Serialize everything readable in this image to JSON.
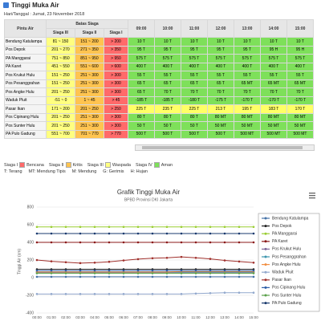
{
  "header": {
    "title": "Tinggi Muka Air",
    "date": "Hari/Tanggal : Jumat, 23 November 2018"
  },
  "table": {
    "pintu": "Pintu Air",
    "batas": "Batas Siaga",
    "siaga": [
      "Siaga III",
      "Siaga II",
      "Siaga I"
    ],
    "siaga_colors": [
      "#ffff80",
      "#ffc450",
      "#ff6a6a"
    ],
    "times": [
      "09:00",
      "10:00",
      "11:00",
      "12:00",
      "13:00",
      "14:00",
      "15:00"
    ],
    "rows": [
      {
        "name": "Bendung Katulampa",
        "siaga": [
          "81 ~ 150",
          "151 ~ 200",
          "> 200"
        ],
        "values": [
          "10 T",
          "10 T",
          "10 T",
          "10 T",
          "10 T",
          "10 T",
          "10 T"
        ],
        "color": "#7ee05a"
      },
      {
        "name": "Pos Depok",
        "siaga": [
          "201 ~ 270",
          "271 ~ 350",
          "> 350"
        ],
        "values": [
          "95 T",
          "95 T",
          "95 T",
          "95 T",
          "95 T",
          "95 H",
          "95 H"
        ],
        "color": "#7ee05a"
      },
      {
        "name": "PA Manggarai",
        "siaga": [
          "751 ~ 850",
          "851 ~ 950",
          "> 950"
        ],
        "values": [
          "575 T",
          "575 T",
          "575 T",
          "575 T",
          "575 T",
          "575 T",
          "575 T"
        ],
        "color": "#7ee05a"
      },
      {
        "name": "PA Karet",
        "siaga": [
          "451 ~ 550",
          "551 ~ 600",
          "> 600"
        ],
        "values": [
          "400 T",
          "400 T",
          "400 T",
          "400 T",
          "400 T",
          "400 T",
          "400 T"
        ],
        "color": "#7ee05a"
      },
      {
        "name": "Pos Krukut Hulu",
        "siaga": [
          "151 ~ 250",
          "251 ~ 300",
          "> 300"
        ],
        "values": [
          "55 T",
          "55 T",
          "55 T",
          "55 T",
          "55 T",
          "55 T",
          "55 T"
        ],
        "color": "#7ee05a"
      },
      {
        "name": "Pos Pesanggrahan",
        "siaga": [
          "151 ~ 250",
          "251 ~ 300",
          "> 300"
        ],
        "values": [
          "65 T",
          "65 T",
          "65 T",
          "65 T",
          "65 MT",
          "65 MT",
          "65 MT"
        ],
        "color": "#7ee05a"
      },
      {
        "name": "Pos Angke Hulu",
        "siaga": [
          "201 ~ 250",
          "251 ~ 300",
          "> 300"
        ],
        "values": [
          "65 T",
          "70 T",
          "70 T",
          "70 T",
          "70 T",
          "70 T",
          "70 T"
        ],
        "color": "#7ee05a"
      },
      {
        "name": "Waduk Pluit",
        "siaga": [
          "-51 ~ 0",
          "1 ~ 45",
          "> 45"
        ],
        "values": [
          "-185 T",
          "-185 T",
          "-180 T",
          "-175 T",
          "-170 T",
          "-170 T",
          "-170 T"
        ],
        "color": "#7ee05a"
      },
      {
        "name": "Pasar Ikan",
        "siaga": [
          "171 ~ 200",
          "201 ~ 250",
          "> 250"
        ],
        "values": [
          "225 T",
          "235 T",
          "225 T",
          "213 T",
          "195 T",
          "183 T",
          "170 T"
        ],
        "color": "#ffff66"
      },
      {
        "name": "Pos Cipinang Hulu",
        "siaga": [
          "201 ~ 250",
          "251 ~ 300",
          "> 300"
        ],
        "values": [
          "80 T",
          "80 T",
          "80 T",
          "80 MT",
          "80 MT",
          "80 MT",
          "80 MT"
        ],
        "color": "#7ee05a"
      },
      {
        "name": "Pos Sunter Hulu",
        "siaga": [
          "201 ~ 250",
          "251 ~ 300",
          "> 300"
        ],
        "values": [
          "50 T",
          "50 T",
          "50 T",
          "50 MT",
          "50 MT",
          "50 MT",
          "50 MT"
        ],
        "color": "#7ee05a"
      },
      {
        "name": "PA Pulo Gadung",
        "siaga": [
          "551 ~ 700",
          "701 ~ 770",
          "> 770"
        ],
        "values": [
          "500 T",
          "500 T",
          "500 T",
          "500 T",
          "500 MT",
          "500 MT",
          "500 MT"
        ],
        "color": "#7ee05a"
      }
    ]
  },
  "legend": {
    "items": [
      {
        "level": "Siaga I",
        "label": "Bencana",
        "color": "#ff6a6a"
      },
      {
        "level": "Siaga II",
        "label": "Kritis",
        "color": "#ffc450"
      },
      {
        "level": "Siaga III",
        "label": "Waspada",
        "color": "#ffff80"
      },
      {
        "level": "Siaga IV",
        "label": "Aman",
        "color": "#7ee05a"
      }
    ],
    "weather": [
      "T: Terang",
      "MT: Mendung Tipis",
      "M: Mendung",
      "G: Gerimis",
      "H: Hujan"
    ]
  },
  "chart_data": {
    "type": "line",
    "title": "Grafik Tinggi Muka Air",
    "subtitle": "BPBD Provinsi DKI Jakarta",
    "y_label": "Tinggi Air (cm)",
    "categories": [
      "00:00",
      "01:00",
      "02:00",
      "03:00",
      "04:00",
      "05:00",
      "06:00",
      "07:00",
      "08:00",
      "09:00",
      "10:00",
      "11:00",
      "12:00",
      "13:00",
      "14:00",
      "15:00"
    ],
    "ylim": [
      -400,
      800
    ],
    "yticks": [
      -400,
      -200,
      0,
      200,
      400,
      600,
      800
    ],
    "grid": true,
    "series": [
      {
        "name": "Bendung Katulampa",
        "color": "#4572a7",
        "values": [
          10,
          10,
          10,
          10,
          10,
          10,
          10,
          10,
          10,
          10,
          10,
          10,
          10,
          10,
          10,
          10
        ]
      },
      {
        "name": "Pos Depok",
        "color": "#222222",
        "values": [
          95,
          95,
          95,
          95,
          95,
          95,
          95,
          95,
          95,
          95,
          95,
          95,
          95,
          95,
          95,
          95
        ]
      },
      {
        "name": "PA Manggarai",
        "color": "#9acd32",
        "values": [
          575,
          575,
          575,
          575,
          575,
          575,
          575,
          575,
          575,
          575,
          575,
          575,
          575,
          575,
          575,
          575
        ]
      },
      {
        "name": "PA Karet",
        "color": "#8b1a1a",
        "values": [
          400,
          400,
          400,
          400,
          400,
          400,
          400,
          400,
          400,
          400,
          400,
          400,
          400,
          400,
          400,
          400
        ]
      },
      {
        "name": "Pos Krukut Hulu",
        "color": "#80699b",
        "values": [
          55,
          55,
          55,
          55,
          55,
          55,
          55,
          55,
          55,
          55,
          55,
          55,
          55,
          55,
          55,
          55
        ]
      },
      {
        "name": "Pos Pesanggrahan",
        "color": "#3d96ae",
        "values": [
          65,
          65,
          65,
          65,
          65,
          65,
          65,
          65,
          65,
          65,
          65,
          65,
          65,
          65,
          65,
          65
        ]
      },
      {
        "name": "Pos Angke Hulu",
        "color": "#f28f43",
        "values": [
          65,
          65,
          65,
          65,
          65,
          65,
          65,
          65,
          65,
          65,
          70,
          70,
          70,
          70,
          70,
          70
        ]
      },
      {
        "name": "Waduk Pluit",
        "color": "#92a8cd",
        "values": [
          -185,
          -185,
          -185,
          -185,
          -185,
          -185,
          -185,
          -185,
          -185,
          -185,
          -185,
          -180,
          -175,
          -170,
          -170,
          -170
        ]
      },
      {
        "name": "Pasar Ikan",
        "color": "#a0302c",
        "values": [
          200,
          185,
          175,
          165,
          170,
          180,
          195,
          210,
          220,
          225,
          235,
          225,
          213,
          195,
          183,
          170
        ]
      },
      {
        "name": "Pos Cipinang Hulu",
        "color": "#2f5fa8",
        "values": [
          80,
          80,
          80,
          80,
          80,
          80,
          80,
          80,
          80,
          80,
          80,
          80,
          80,
          80,
          80,
          80
        ]
      },
      {
        "name": "Pos Sunter Hulu",
        "color": "#5aa04a",
        "values": [
          50,
          50,
          50,
          50,
          50,
          50,
          50,
          50,
          50,
          50,
          50,
          50,
          50,
          50,
          50,
          50
        ]
      },
      {
        "name": "PA Pulo Gadung",
        "color": "#1a3a6e",
        "values": [
          500,
          500,
          500,
          500,
          500,
          500,
          500,
          500,
          500,
          500,
          500,
          500,
          500,
          500,
          500,
          500
        ]
      }
    ]
  }
}
